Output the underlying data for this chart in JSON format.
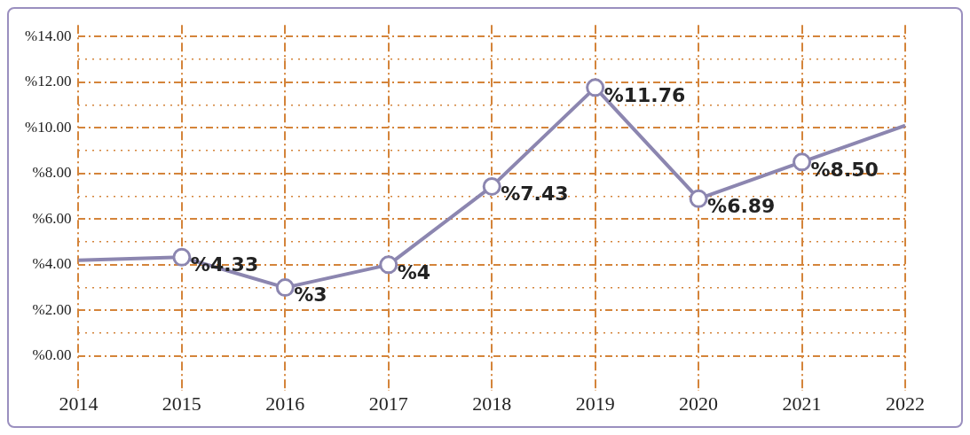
{
  "chart_data": {
    "type": "line",
    "categories": [
      "2014",
      "2015",
      "2016",
      "2017",
      "2018",
      "2019",
      "2020",
      "2021",
      "2022"
    ],
    "series": [
      {
        "color": "#8c86b0",
        "values": [
          4.2,
          4.33,
          3,
          4,
          7.43,
          11.76,
          6.89,
          8.5,
          10.1
        ],
        "value_labels": [
          null,
          "%4.33",
          "%3",
          "%4",
          "%7.43",
          "%11.76",
          "%6.89",
          "%8.50",
          null
        ]
      }
    ],
    "ylim": [
      -1.5,
      14.5
    ],
    "yticks": [
      {
        "value": 0,
        "label": "%0.00"
      },
      {
        "value": 1,
        "label": null
      },
      {
        "value": 2,
        "label": "%2.00"
      },
      {
        "value": 3,
        "label": null
      },
      {
        "value": 4,
        "label": "%4.00"
      },
      {
        "value": 5,
        "label": null
      },
      {
        "value": 6,
        "label": "%6.00"
      },
      {
        "value": 7,
        "label": null
      },
      {
        "value": 8,
        "label": "%8.00"
      },
      {
        "value": 9,
        "label": null
      },
      {
        "value": 10,
        "label": "%10.00"
      },
      {
        "value": 11,
        "label": null
      },
      {
        "value": 12,
        "label": "%12.00"
      },
      {
        "value": 13,
        "label": null
      },
      {
        "value": 14,
        "label": "%14.00"
      }
    ],
    "grid": true,
    "legend": false,
    "marker": "circle",
    "line_style": "solid"
  }
}
